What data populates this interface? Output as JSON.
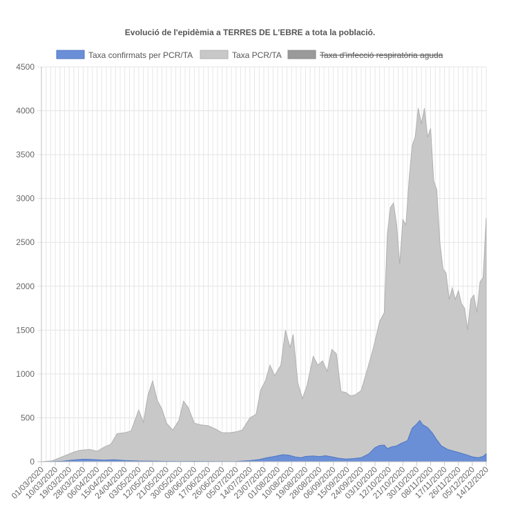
{
  "chart_data": {
    "type": "area",
    "title": "Evolució de l'epidèmia a TERRES DE L'EBRE a tota la població.",
    "xlabel": "",
    "ylabel": "",
    "ylim": [
      0,
      4500
    ],
    "y_ticks": [
      "0",
      "500",
      "1000",
      "1500",
      "2000",
      "2500",
      "3000",
      "3500",
      "4000",
      "4500"
    ],
    "x_start": "2020-03-01",
    "x_end": "2020-12-14",
    "x_tick_labels": [
      "01/03/2020",
      "10/03/2020",
      "19/03/2020",
      "28/03/2020",
      "06/04/2020",
      "15/04/2020",
      "24/04/2020",
      "03/05/2020",
      "12/05/2020",
      "21/05/2020",
      "30/05/2020",
      "08/06/2020",
      "17/06/2020",
      "26/06/2020",
      "05/07/2020",
      "14/07/2020",
      "23/07/2020",
      "01/08/2020",
      "10/08/2020",
      "19/08/2020",
      "28/08/2020",
      "06/09/2020",
      "15/09/2020",
      "24/09/2020",
      "03/10/2020",
      "12/10/2020",
      "21/10/2020",
      "30/10/2020",
      "08/11/2020",
      "17/11/2020",
      "26/11/2020",
      "05/12/2020",
      "14/12/2020"
    ],
    "grid": true,
    "legend_position": "top",
    "colors": {
      "confirmed": "#6a8fd6",
      "pcr": "#c8c8c8",
      "iras": "#9a9a9a"
    },
    "series": [
      {
        "name": "Taxa confirmats per PCR/TA",
        "hidden": false,
        "points": [
          [
            "2020-03-01",
            0
          ],
          [
            "2020-03-08",
            2
          ],
          [
            "2020-03-15",
            6
          ],
          [
            "2020-03-22",
            20
          ],
          [
            "2020-03-28",
            28
          ],
          [
            "2020-04-03",
            25
          ],
          [
            "2020-04-10",
            18
          ],
          [
            "2020-04-17",
            22
          ],
          [
            "2020-04-24",
            14
          ],
          [
            "2020-05-03",
            8
          ],
          [
            "2020-05-12",
            6
          ],
          [
            "2020-05-21",
            4
          ],
          [
            "2020-05-30",
            3
          ],
          [
            "2020-06-08",
            4
          ],
          [
            "2020-06-17",
            3
          ],
          [
            "2020-06-26",
            2
          ],
          [
            "2020-07-05",
            3
          ],
          [
            "2020-07-14",
            12
          ],
          [
            "2020-07-20",
            25
          ],
          [
            "2020-07-25",
            45
          ],
          [
            "2020-07-30",
            60
          ],
          [
            "2020-08-04",
            80
          ],
          [
            "2020-08-08",
            75
          ],
          [
            "2020-08-12",
            55
          ],
          [
            "2020-08-16",
            45
          ],
          [
            "2020-08-19",
            60
          ],
          [
            "2020-08-24",
            65
          ],
          [
            "2020-08-28",
            58
          ],
          [
            "2020-09-01",
            68
          ],
          [
            "2020-09-05",
            55
          ],
          [
            "2020-09-09",
            40
          ],
          [
            "2020-09-14",
            30
          ],
          [
            "2020-09-19",
            35
          ],
          [
            "2020-09-24",
            45
          ],
          [
            "2020-09-29",
            90
          ],
          [
            "2020-10-03",
            160
          ],
          [
            "2020-10-06",
            185
          ],
          [
            "2020-10-09",
            190
          ],
          [
            "2020-10-11",
            150
          ],
          [
            "2020-10-14",
            170
          ],
          [
            "2020-10-17",
            180
          ],
          [
            "2020-10-20",
            210
          ],
          [
            "2020-10-22",
            225
          ],
          [
            "2020-10-24",
            240
          ],
          [
            "2020-10-27",
            380
          ],
          [
            "2020-10-30",
            430
          ],
          [
            "2020-11-01",
            470
          ],
          [
            "2020-11-03",
            420
          ],
          [
            "2020-11-06",
            390
          ],
          [
            "2020-11-09",
            330
          ],
          [
            "2020-11-12",
            250
          ],
          [
            "2020-11-15",
            180
          ],
          [
            "2020-11-19",
            140
          ],
          [
            "2020-11-23",
            120
          ],
          [
            "2020-11-27",
            100
          ],
          [
            "2020-12-01",
            80
          ],
          [
            "2020-12-05",
            55
          ],
          [
            "2020-12-09",
            45
          ],
          [
            "2020-12-12",
            60
          ],
          [
            "2020-12-14",
            90
          ]
        ]
      },
      {
        "name": "Taxa PCR/TA",
        "hidden": false,
        "points": [
          [
            "2020-03-01",
            0
          ],
          [
            "2020-03-08",
            10
          ],
          [
            "2020-03-15",
            60
          ],
          [
            "2020-03-22",
            110
          ],
          [
            "2020-03-26",
            130
          ],
          [
            "2020-04-01",
            140
          ],
          [
            "2020-04-06",
            120
          ],
          [
            "2020-04-11",
            170
          ],
          [
            "2020-04-15",
            200
          ],
          [
            "2020-04-19",
            320
          ],
          [
            "2020-04-24",
            330
          ],
          [
            "2020-04-28",
            350
          ],
          [
            "2020-05-03",
            590
          ],
          [
            "2020-05-06",
            450
          ],
          [
            "2020-05-09",
            760
          ],
          [
            "2020-05-12",
            920
          ],
          [
            "2020-05-15",
            700
          ],
          [
            "2020-05-18",
            600
          ],
          [
            "2020-05-21",
            440
          ],
          [
            "2020-05-25",
            360
          ],
          [
            "2020-05-29",
            470
          ],
          [
            "2020-06-01",
            690
          ],
          [
            "2020-06-04",
            620
          ],
          [
            "2020-06-08",
            440
          ],
          [
            "2020-06-12",
            420
          ],
          [
            "2020-06-17",
            410
          ],
          [
            "2020-06-22",
            370
          ],
          [
            "2020-06-26",
            330
          ],
          [
            "2020-07-01",
            330
          ],
          [
            "2020-07-05",
            340
          ],
          [
            "2020-07-09",
            360
          ],
          [
            "2020-07-14",
            500
          ],
          [
            "2020-07-18",
            540
          ],
          [
            "2020-07-21",
            820
          ],
          [
            "2020-07-24",
            920
          ],
          [
            "2020-07-27",
            1100
          ],
          [
            "2020-07-30",
            980
          ],
          [
            "2020-08-03",
            1100
          ],
          [
            "2020-08-06",
            1500
          ],
          [
            "2020-08-09",
            1300
          ],
          [
            "2020-08-11",
            1450
          ],
          [
            "2020-08-14",
            900
          ],
          [
            "2020-08-17",
            720
          ],
          [
            "2020-08-20",
            870
          ],
          [
            "2020-08-24",
            1200
          ],
          [
            "2020-08-27",
            1100
          ],
          [
            "2020-08-30",
            1150
          ],
          [
            "2020-09-02",
            1030
          ],
          [
            "2020-09-05",
            1280
          ],
          [
            "2020-09-08",
            1230
          ],
          [
            "2020-09-11",
            800
          ],
          [
            "2020-09-14",
            790
          ],
          [
            "2020-09-17",
            750
          ],
          [
            "2020-09-20",
            760
          ],
          [
            "2020-09-24",
            810
          ],
          [
            "2020-09-28",
            1050
          ],
          [
            "2020-10-02",
            1300
          ],
          [
            "2020-10-06",
            1600
          ],
          [
            "2020-10-09",
            1700
          ],
          [
            "2020-10-11",
            2600
          ],
          [
            "2020-10-13",
            2900
          ],
          [
            "2020-10-15",
            2950
          ],
          [
            "2020-10-17",
            2700
          ],
          [
            "2020-10-19",
            2250
          ],
          [
            "2020-10-21",
            2760
          ],
          [
            "2020-10-23",
            2700
          ],
          [
            "2020-10-25",
            3200
          ],
          [
            "2020-10-27",
            3600
          ],
          [
            "2020-10-29",
            3700
          ],
          [
            "2020-10-31",
            4030
          ],
          [
            "2020-11-02",
            3850
          ],
          [
            "2020-11-04",
            4030
          ],
          [
            "2020-11-06",
            3700
          ],
          [
            "2020-11-08",
            3800
          ],
          [
            "2020-11-10",
            3200
          ],
          [
            "2020-11-12",
            3100
          ],
          [
            "2020-11-14",
            2500
          ],
          [
            "2020-11-16",
            2200
          ],
          [
            "2020-11-18",
            2150
          ],
          [
            "2020-11-20",
            1850
          ],
          [
            "2020-11-22",
            1980
          ],
          [
            "2020-11-24",
            1850
          ],
          [
            "2020-11-26",
            1950
          ],
          [
            "2020-11-28",
            1800
          ],
          [
            "2020-11-30",
            1750
          ],
          [
            "2020-12-02",
            1500
          ],
          [
            "2020-12-04",
            1850
          ],
          [
            "2020-12-06",
            1900
          ],
          [
            "2020-12-08",
            1700
          ],
          [
            "2020-12-10",
            2050
          ],
          [
            "2020-12-12",
            2100
          ],
          [
            "2020-12-14",
            2780
          ]
        ]
      },
      {
        "name": "Taxa d'infecció respiratòria aguda",
        "hidden": true,
        "points": []
      }
    ]
  }
}
